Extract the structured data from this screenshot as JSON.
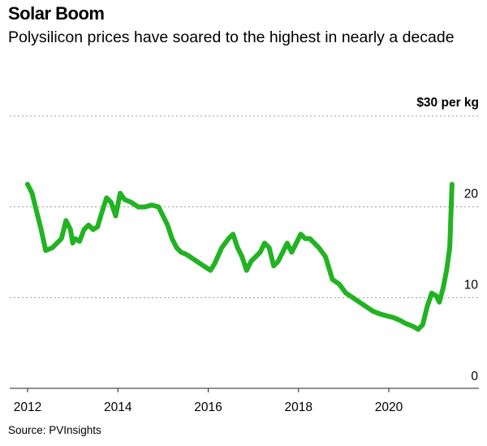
{
  "chart_data": {
    "type": "line",
    "title": "Solar Boom",
    "subtitle": "Polysilicon prices have soared to the highest in nearly a decade",
    "source": "Source: PVInsights",
    "y_unit_label": "$30 per kg",
    "ylim": [
      0,
      30
    ],
    "y_ticks": [
      0,
      10,
      20
    ],
    "xlim": [
      2011.9,
      2021.6
    ],
    "x_ticks": [
      "2012",
      "2014",
      "2016",
      "2018",
      "2020"
    ],
    "grid": "horizontal dotted",
    "line_color": "#22b322",
    "series": [
      {
        "x": [
          2012.0,
          2012.1,
          2012.15,
          2012.3,
          2012.4,
          2012.55,
          2012.65,
          2012.75,
          2012.85,
          2012.95,
          2013.0,
          2013.05,
          2013.15,
          2013.25,
          2013.35,
          2013.45,
          2013.55,
          2013.65,
          2013.75,
          2013.85,
          2013.95,
          2014.05,
          2014.15,
          2014.3,
          2014.45,
          2014.6,
          2014.75,
          2014.9,
          2015.0,
          2015.1,
          2015.2,
          2015.3,
          2015.4,
          2015.5,
          2015.6,
          2015.75,
          2015.9,
          2016.05,
          2016.15,
          2016.3,
          2016.45,
          2016.55,
          2016.65,
          2016.75,
          2016.85,
          2016.95,
          2017.05,
          2017.15,
          2017.25,
          2017.35,
          2017.45,
          2017.55,
          2017.65,
          2017.75,
          2017.85,
          2017.95,
          2018.05,
          2018.15,
          2018.25,
          2018.35,
          2018.45,
          2018.6,
          2018.75,
          2018.9,
          2019.05,
          2019.2,
          2019.35,
          2019.5,
          2019.65,
          2019.8,
          2019.95,
          2020.1,
          2020.25,
          2020.35,
          2020.45,
          2020.55,
          2020.65,
          2020.75,
          2020.85,
          2020.95,
          2021.05,
          2021.12,
          2021.2,
          2021.28,
          2021.35,
          2021.4
        ],
        "y": [
          22.5,
          21.5,
          20.5,
          17.5,
          15.2,
          15.5,
          16.0,
          16.5,
          18.5,
          17.5,
          16.0,
          16.5,
          16.2,
          17.5,
          18.0,
          17.5,
          17.8,
          19.5,
          21.0,
          20.5,
          19.0,
          21.5,
          20.8,
          20.5,
          20.0,
          20.0,
          20.2,
          20.0,
          19.0,
          18.0,
          16.5,
          15.5,
          15.0,
          14.8,
          14.5,
          14.0,
          13.5,
          13.0,
          13.8,
          15.5,
          16.5,
          17.0,
          15.5,
          14.5,
          13.0,
          14.0,
          14.5,
          15.0,
          16.0,
          15.5,
          13.5,
          14.0,
          15.0,
          16.0,
          15.0,
          16.0,
          17.0,
          16.5,
          16.5,
          16.0,
          15.5,
          14.5,
          12.0,
          11.5,
          10.5,
          10.0,
          9.5,
          9.0,
          8.5,
          8.2,
          8.0,
          7.8,
          7.5,
          7.2,
          7.0,
          6.8,
          6.5,
          7.0,
          9.0,
          10.5,
          10.2,
          9.5,
          11.0,
          13.0,
          15.5,
          22.5
        ]
      }
    ]
  }
}
